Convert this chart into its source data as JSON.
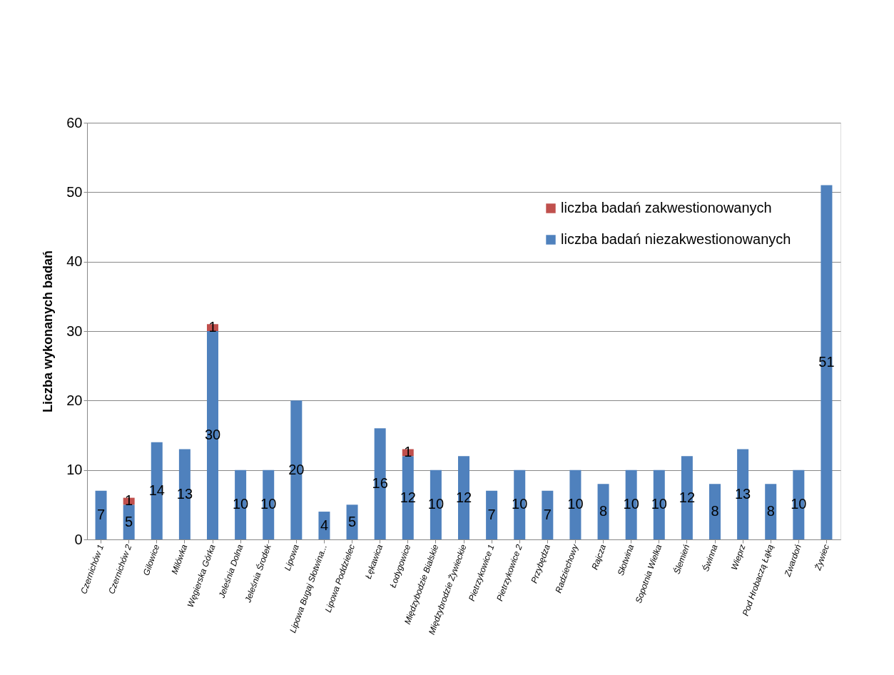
{
  "chart_data": {
    "type": "bar",
    "stacked": true,
    "ylabel": "Liczba wykonanych badań",
    "categories": [
      "Czernichów 1",
      "Czernichów 2",
      "Gilowice",
      "Milówka",
      "Węgierska Górka",
      "Jeleśnia Dolna",
      "Jeleśnia Środek",
      "Lipowa",
      "Lipowa Bugaj Słotwina...",
      "Lipowa Poddzielec",
      "Łękawica",
      "Łodygowice",
      "Międzybodzie  Bialskie",
      "Międzybrodzie Żywieckie",
      "Pietrzykowice 1",
      "Pietrzykowice 2",
      "Przybędza",
      "Radziechowy",
      "Rajcza",
      "Słotwina",
      "Sopotnia Wielka",
      "Ślemień",
      "Świnna",
      "Wieprz",
      "Pod Hrobaczą Łąką",
      "Zwardoń",
      "Żywiec"
    ],
    "series": [
      {
        "name": "liczba badań niezakwestionowanych",
        "color": "#4f81bd",
        "values": [
          7,
          5,
          14,
          13,
          30,
          10,
          10,
          20,
          4,
          5,
          16,
          12,
          10,
          12,
          7,
          10,
          7,
          10,
          8,
          10,
          10,
          12,
          8,
          13,
          8,
          10,
          51
        ]
      },
      {
        "name": "liczba badań zakwestionowanych",
        "color": "#c0504d",
        "values": [
          null,
          1,
          null,
          null,
          1,
          null,
          null,
          null,
          null,
          null,
          null,
          1,
          null,
          null,
          null,
          null,
          null,
          null,
          null,
          null,
          null,
          null,
          null,
          null,
          null,
          null,
          null
        ]
      }
    ],
    "ylim": [
      0,
      60
    ],
    "yticks": [
      0,
      10,
      20,
      30,
      40,
      50,
      60
    ],
    "grid": "y",
    "legend": "top right",
    "data_labels": true
  }
}
